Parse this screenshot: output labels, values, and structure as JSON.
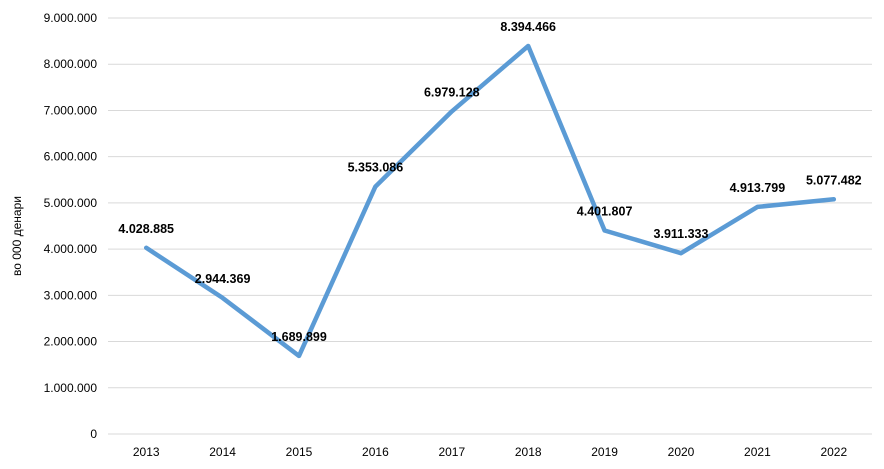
{
  "chart_data": {
    "type": "line",
    "title": "",
    "xlabel": "",
    "ylabel": "во 000 денари",
    "categories": [
      "2013",
      "2014",
      "2015",
      "2016",
      "2017",
      "2018",
      "2019",
      "2020",
      "2021",
      "2022"
    ],
    "series": [
      {
        "values": [
          4028885,
          2944369,
          1689899,
          5353086,
          6979128,
          8394466,
          4401807,
          3911333,
          4913799,
          5077482
        ],
        "data_labels": [
          "4.028.885",
          "2.944.369",
          "1.689.899",
          "5.353.086",
          "6.979.128",
          "8.394.466",
          "4.401.807",
          "3.911.333",
          "4.913.799",
          "5.077.482"
        ],
        "color": "#5b9bd5"
      }
    ],
    "ylim": [
      0,
      9000000
    ],
    "y_ticks": [
      0,
      1000000,
      2000000,
      3000000,
      4000000,
      5000000,
      6000000,
      7000000,
      8000000,
      9000000
    ],
    "y_tick_labels": [
      "0",
      "1.000.000",
      "2.000.000",
      "3.000.000",
      "4.000.000",
      "5.000.000",
      "6.000.000",
      "7.000.000",
      "8.000.000",
      "9.000.000"
    ],
    "grid": true,
    "legend": "none"
  }
}
